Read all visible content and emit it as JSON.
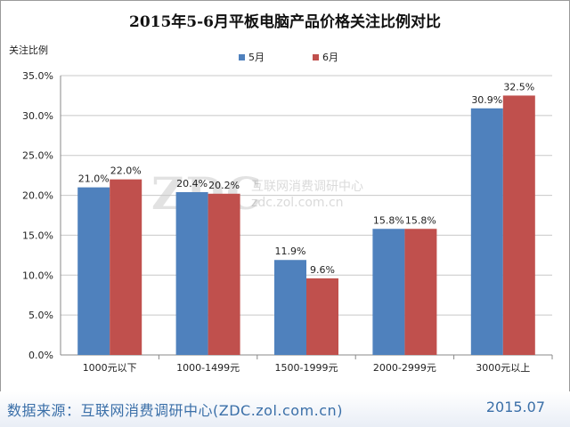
{
  "footer": {
    "source": "数据来源：互联网消费调研中心(ZDC.zol.com.cn)",
    "date": "2015.07"
  },
  "watermark": {
    "logo": "ZDC",
    "line1": "互联网消费调研中心",
    "line2": "zdc.zol.com.cn"
  },
  "chart_data": {
    "type": "bar",
    "title": "2015年5-6月平板电脑产品价格关注比例对比",
    "ylabel": "关注比例",
    "xlabel": "",
    "categories": [
      "1000元以下",
      "1000-1499元",
      "1500-1999元",
      "2000-2999元",
      "3000元以上"
    ],
    "series": [
      {
        "name": "5月",
        "color": "#4f81bd",
        "values": [
          21.0,
          20.4,
          11.9,
          15.8,
          30.9
        ]
      },
      {
        "name": "6月",
        "color": "#c0504d",
        "values": [
          22.0,
          20.2,
          9.6,
          15.8,
          32.5
        ]
      }
    ],
    "ylim": [
      0,
      35
    ],
    "yticks": [
      "0.0%",
      "5.0%",
      "10.0%",
      "15.0%",
      "20.0%",
      "25.0%",
      "30.0%",
      "35.0%"
    ],
    "data_labels": [
      [
        "21.0%",
        "20.4%",
        "11.9%",
        "15.8%",
        "30.9%"
      ],
      [
        "22.0%",
        "20.2%",
        "9.6%",
        "15.8%",
        "32.5%"
      ]
    ],
    "grid": true,
    "legend_position": "top"
  }
}
